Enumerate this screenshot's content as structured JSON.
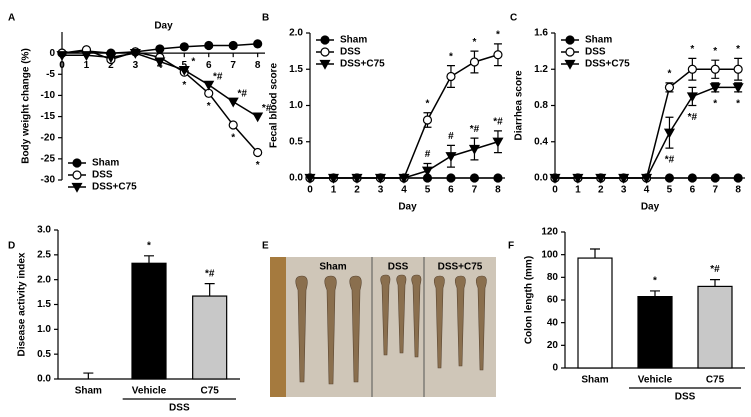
{
  "chart_data": [
    {
      "panel": "A",
      "type": "line",
      "xlabel": "Day",
      "ylabel": "Body weight change (%)",
      "x": [
        0,
        1,
        2,
        3,
        4,
        5,
        6,
        7,
        8
      ],
      "xlim": [
        0,
        8.3
      ],
      "xticks": [
        0,
        1,
        2,
        3,
        4,
        5,
        6,
        7,
        8
      ],
      "ylim": [
        -30,
        5
      ],
      "yticks": [
        0,
        -5,
        -10,
        -15,
        -20,
        -25,
        -30
      ],
      "legend": "lower left",
      "series": [
        {
          "name": "Sham",
          "color": "#000000",
          "marker": "filled-circle",
          "values": [
            0,
            0.5,
            0,
            0.3,
            1,
            1.5,
            1.8,
            1.8,
            2.2
          ]
        },
        {
          "name": "DSS",
          "color": "#000000",
          "marker": "open-circle",
          "values": [
            0,
            0.8,
            -1.5,
            0.3,
            -1,
            -4.5,
            -9.5,
            -17,
            -23.5
          ],
          "point_labels": [
            null,
            null,
            null,
            null,
            null,
            "*",
            "*",
            "*",
            "*"
          ]
        },
        {
          "name": "DSS+C75",
          "color": "#000000",
          "marker": "filled-triangle",
          "values": [
            -0.5,
            -0.5,
            -1,
            0,
            -2,
            -4,
            -7.5,
            -11.5,
            -15
          ],
          "point_labels": [
            null,
            null,
            null,
            null,
            null,
            "*",
            "*#",
            "*#",
            "*#"
          ]
        }
      ]
    },
    {
      "panel": "B",
      "type": "line",
      "xlabel": "Day",
      "ylabel": "Fecal blood score",
      "x": [
        0,
        1,
        2,
        3,
        4,
        5,
        6,
        7,
        8
      ],
      "xlim": [
        0,
        8.3
      ],
      "xticks": [
        0,
        1,
        2,
        3,
        4,
        5,
        6,
        7,
        8
      ],
      "ylim": [
        0,
        2
      ],
      "yticks": [
        {
          "value": 0,
          "label": "0.0"
        },
        {
          "value": 0.5,
          "label": "0.5"
        },
        {
          "value": 1,
          "label": "1.0"
        },
        {
          "value": 1.5,
          "label": "1.5"
        },
        {
          "value": 2,
          "label": "2.0"
        }
      ],
      "legend": "upper left",
      "series": [
        {
          "name": "Sham",
          "color": "#000000",
          "marker": "filled-circle",
          "values": [
            0,
            0,
            0,
            0,
            0,
            0,
            0,
            0,
            0
          ]
        },
        {
          "name": "DSS",
          "color": "#000000",
          "marker": "open-circle",
          "values": [
            0,
            0,
            0,
            0,
            0,
            0.8,
            1.4,
            1.6,
            1.7
          ],
          "errors": [
            0,
            0,
            0,
            0,
            0,
            0.1,
            0.15,
            0.15,
            0.15
          ],
          "point_labels": [
            null,
            null,
            null,
            null,
            null,
            "*",
            "*",
            "*",
            "*"
          ]
        },
        {
          "name": "DSS+C75",
          "color": "#000000",
          "marker": "filled-triangle",
          "values": [
            0,
            0,
            0,
            0,
            0,
            0.1,
            0.3,
            0.4,
            0.5
          ],
          "errors": [
            0,
            0,
            0,
            0,
            0,
            0.1,
            0.15,
            0.15,
            0.15
          ],
          "point_labels": [
            null,
            null,
            null,
            null,
            null,
            "#",
            "#",
            "*#",
            "*#"
          ]
        }
      ]
    },
    {
      "panel": "C",
      "type": "line",
      "xlabel": "Day",
      "ylabel": "Diarrhea score",
      "x": [
        0,
        1,
        2,
        3,
        4,
        5,
        6,
        7,
        8
      ],
      "xlim": [
        0,
        8.3
      ],
      "xticks": [
        0,
        1,
        2,
        3,
        4,
        5,
        6,
        7,
        8
      ],
      "ylim": [
        0,
        1.6
      ],
      "yticks": [
        {
          "value": 0,
          "label": "0.0"
        },
        {
          "value": 0.4,
          "label": "0.4"
        },
        {
          "value": 0.8,
          "label": "0.8"
        },
        {
          "value": 1.2,
          "label": "1.2"
        },
        {
          "value": 1.6,
          "label": "1.6"
        }
      ],
      "legend": "upper left",
      "series": [
        {
          "name": "Sham",
          "color": "#000000",
          "marker": "filled-circle",
          "values": [
            0,
            0,
            0,
            0,
            0,
            0,
            0,
            0,
            0
          ]
        },
        {
          "name": "DSS",
          "color": "#000000",
          "marker": "open-circle",
          "values": [
            0,
            0,
            0,
            0,
            0,
            1.0,
            1.2,
            1.2,
            1.2
          ],
          "errors": [
            0,
            0,
            0,
            0,
            0,
            0.05,
            0.12,
            0.1,
            0.12
          ],
          "point_labels": [
            null,
            null,
            null,
            null,
            null,
            "*",
            "*",
            "*",
            "*"
          ]
        },
        {
          "name": "DSS+C75",
          "color": "#000000",
          "marker": "filled-triangle",
          "values": [
            0,
            0,
            0,
            0,
            0,
            0.5,
            0.9,
            1.0,
            1.0
          ],
          "errors": [
            0,
            0,
            0,
            0,
            0,
            0.17,
            0.1,
            0.05,
            0.05
          ],
          "point_labels": [
            null,
            null,
            null,
            null,
            null,
            "*#",
            "*#",
            "*",
            "*"
          ]
        }
      ]
    },
    {
      "panel": "D",
      "type": "bar",
      "ylabel": "Disease activity index",
      "categories": [
        "Sham",
        "Vehicle",
        "C75"
      ],
      "group_label": "DSS",
      "values": [
        0,
        2.33,
        1.67
      ],
      "errors": [
        0.12,
        0.15,
        0.25
      ],
      "colors": [
        "#ffffff",
        "#000000",
        "#c8c8c8"
      ],
      "point_labels": [
        null,
        "*",
        "*#"
      ],
      "ylim": [
        0,
        3
      ],
      "yticks": [
        {
          "value": 0,
          "label": "0.0"
        },
        {
          "value": 0.5,
          "label": "0.5"
        },
        {
          "value": 1,
          "label": "1.0"
        },
        {
          "value": 1.5,
          "label": "1.5"
        },
        {
          "value": 2,
          "label": "2.0"
        },
        {
          "value": 2.5,
          "label": "2.5"
        },
        {
          "value": 3,
          "label": "3.0"
        }
      ]
    },
    {
      "panel": "F",
      "type": "bar",
      "ylabel": "Colon length (mm)",
      "categories": [
        "Sham",
        "Vehicle",
        "C75"
      ],
      "group_label": "DSS",
      "values": [
        97,
        63,
        72
      ],
      "errors": [
        8,
        5,
        6
      ],
      "colors": [
        "#ffffff",
        "#000000",
        "#c8c8c8"
      ],
      "point_labels": [
        null,
        "*",
        "*#"
      ],
      "ylim": [
        0,
        120
      ],
      "yticks": [
        0,
        20,
        40,
        60,
        80,
        100,
        120
      ]
    }
  ],
  "photo": {
    "panel": "E",
    "labels": [
      "Sham",
      "DSS",
      "DSS+C75"
    ]
  }
}
